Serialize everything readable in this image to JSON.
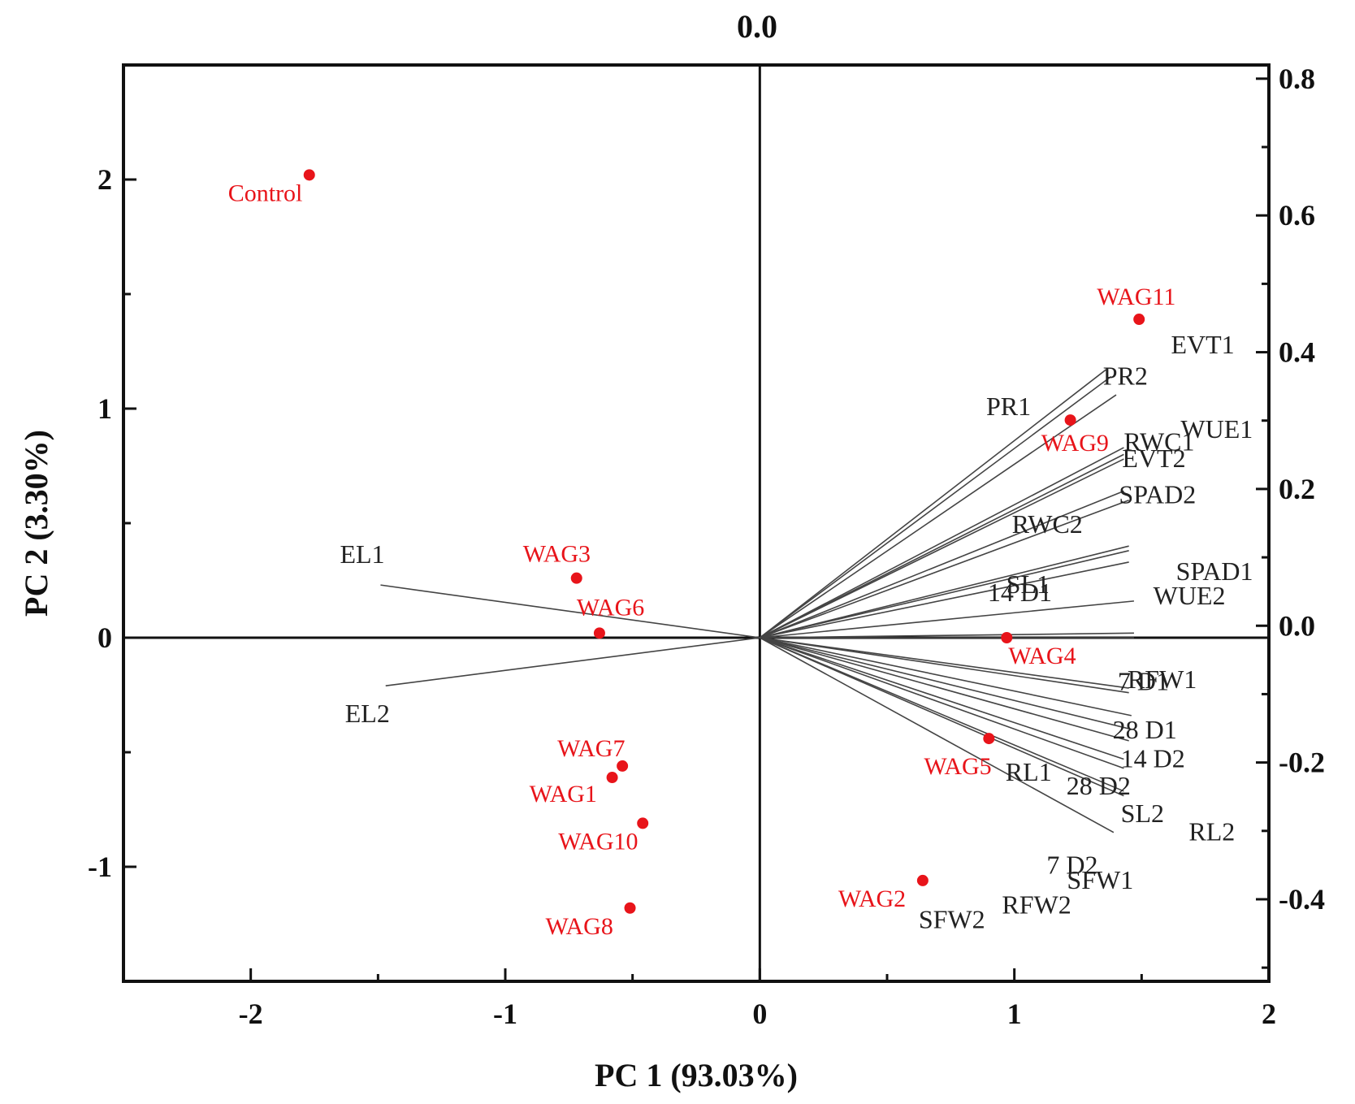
{
  "chart_data": {
    "type": "scatter",
    "subtype": "biplot",
    "xlabel": "PC 1 (93.03%)",
    "ylabel": "PC 2 (3.30%)",
    "top_label": "0.0",
    "xlim": [
      -2.5,
      2.0
    ],
    "ylim": [
      -1.5,
      2.5
    ],
    "x_ticks": [
      -2,
      -1,
      0,
      1,
      2
    ],
    "y_ticks": [
      -1,
      0,
      1,
      2
    ],
    "secondary_ylim": [
      -0.52,
      0.82
    ],
    "secondary_y_ticks": [
      -0.4,
      -0.2,
      0.0,
      0.2,
      0.4,
      0.6,
      0.8
    ],
    "secondary_y_tick_labels": [
      "-0.4",
      "-0.2",
      "0.0",
      "0.2",
      "0.4",
      "0.6",
      "0.8"
    ],
    "point_color": "#e8141a",
    "points": [
      {
        "name": "Control",
        "x": -1.77,
        "y": 2.02
      },
      {
        "name": "WAG11",
        "x": 1.49,
        "y": 1.39
      },
      {
        "name": "WAG9",
        "x": 1.22,
        "y": 0.95
      },
      {
        "name": "WAG3",
        "x": -0.72,
        "y": 0.26
      },
      {
        "name": "WAG6",
        "x": -0.63,
        "y": 0.02
      },
      {
        "name": "WAG4",
        "x": 0.97,
        "y": 0.0
      },
      {
        "name": "WAG5",
        "x": 0.9,
        "y": -0.44
      },
      {
        "name": "WAG7",
        "x": -0.54,
        "y": -0.56
      },
      {
        "name": "WAG1",
        "x": -0.58,
        "y": -0.61
      },
      {
        "name": "WAG10",
        "x": -0.46,
        "y": -0.81
      },
      {
        "name": "WAG2",
        "x": 0.64,
        "y": -1.06
      },
      {
        "name": "WAG8",
        "x": -0.51,
        "y": -1.18
      }
    ],
    "loadings_color": "#444444",
    "loadings": [
      {
        "name": "EVT1",
        "x": 1.36,
        "y": 1.17
      },
      {
        "name": "PR2",
        "x": 1.38,
        "y": 1.14
      },
      {
        "name": "PR1",
        "x": 1.4,
        "y": 1.06
      },
      {
        "name": "WUE1",
        "x": 1.43,
        "y": 0.83
      },
      {
        "name": "RWC1",
        "x": 1.43,
        "y": 0.8
      },
      {
        "name": "EVT2",
        "x": 1.43,
        "y": 0.78
      },
      {
        "name": "SPAD2",
        "x": 1.43,
        "y": 0.64
      },
      {
        "name": "RWC2",
        "x": 1.45,
        "y": 0.6
      },
      {
        "name": "SPAD1",
        "x": 1.45,
        "y": 0.4
      },
      {
        "name": "SL1",
        "x": 1.45,
        "y": 0.38
      },
      {
        "name": "WUE2",
        "x": 1.45,
        "y": 0.33
      },
      {
        "name": "14 D1",
        "x": 1.47,
        "y": 0.16
      },
      {
        "name": "7 D1",
        "x": 1.47,
        "y": 0.02
      },
      {
        "name": "RFW1",
        "x": 1.47,
        "y": 0.0
      },
      {
        "name": "28 D1",
        "x": 1.45,
        "y": -0.22
      },
      {
        "name": "14 D2",
        "x": 1.45,
        "y": -0.24
      },
      {
        "name": "RL1",
        "x": 1.46,
        "y": -0.34
      },
      {
        "name": "28 D2",
        "x": 1.46,
        "y": -0.4
      },
      {
        "name": "SL2",
        "x": 1.45,
        "y": -0.45
      },
      {
        "name": "RL2",
        "x": 1.43,
        "y": -0.53
      },
      {
        "name": "7 D2",
        "x": 1.43,
        "y": -0.57
      },
      {
        "name": "SFW1",
        "x": 1.43,
        "y": -0.67
      },
      {
        "name": "RFW2",
        "x": 1.43,
        "y": -0.69
      },
      {
        "name": "SFW2",
        "x": 1.39,
        "y": -0.85
      },
      {
        "name": "EL1",
        "x": -1.49,
        "y": 0.23
      },
      {
        "name": "EL2",
        "x": -1.47,
        "y": -0.21
      }
    ]
  }
}
